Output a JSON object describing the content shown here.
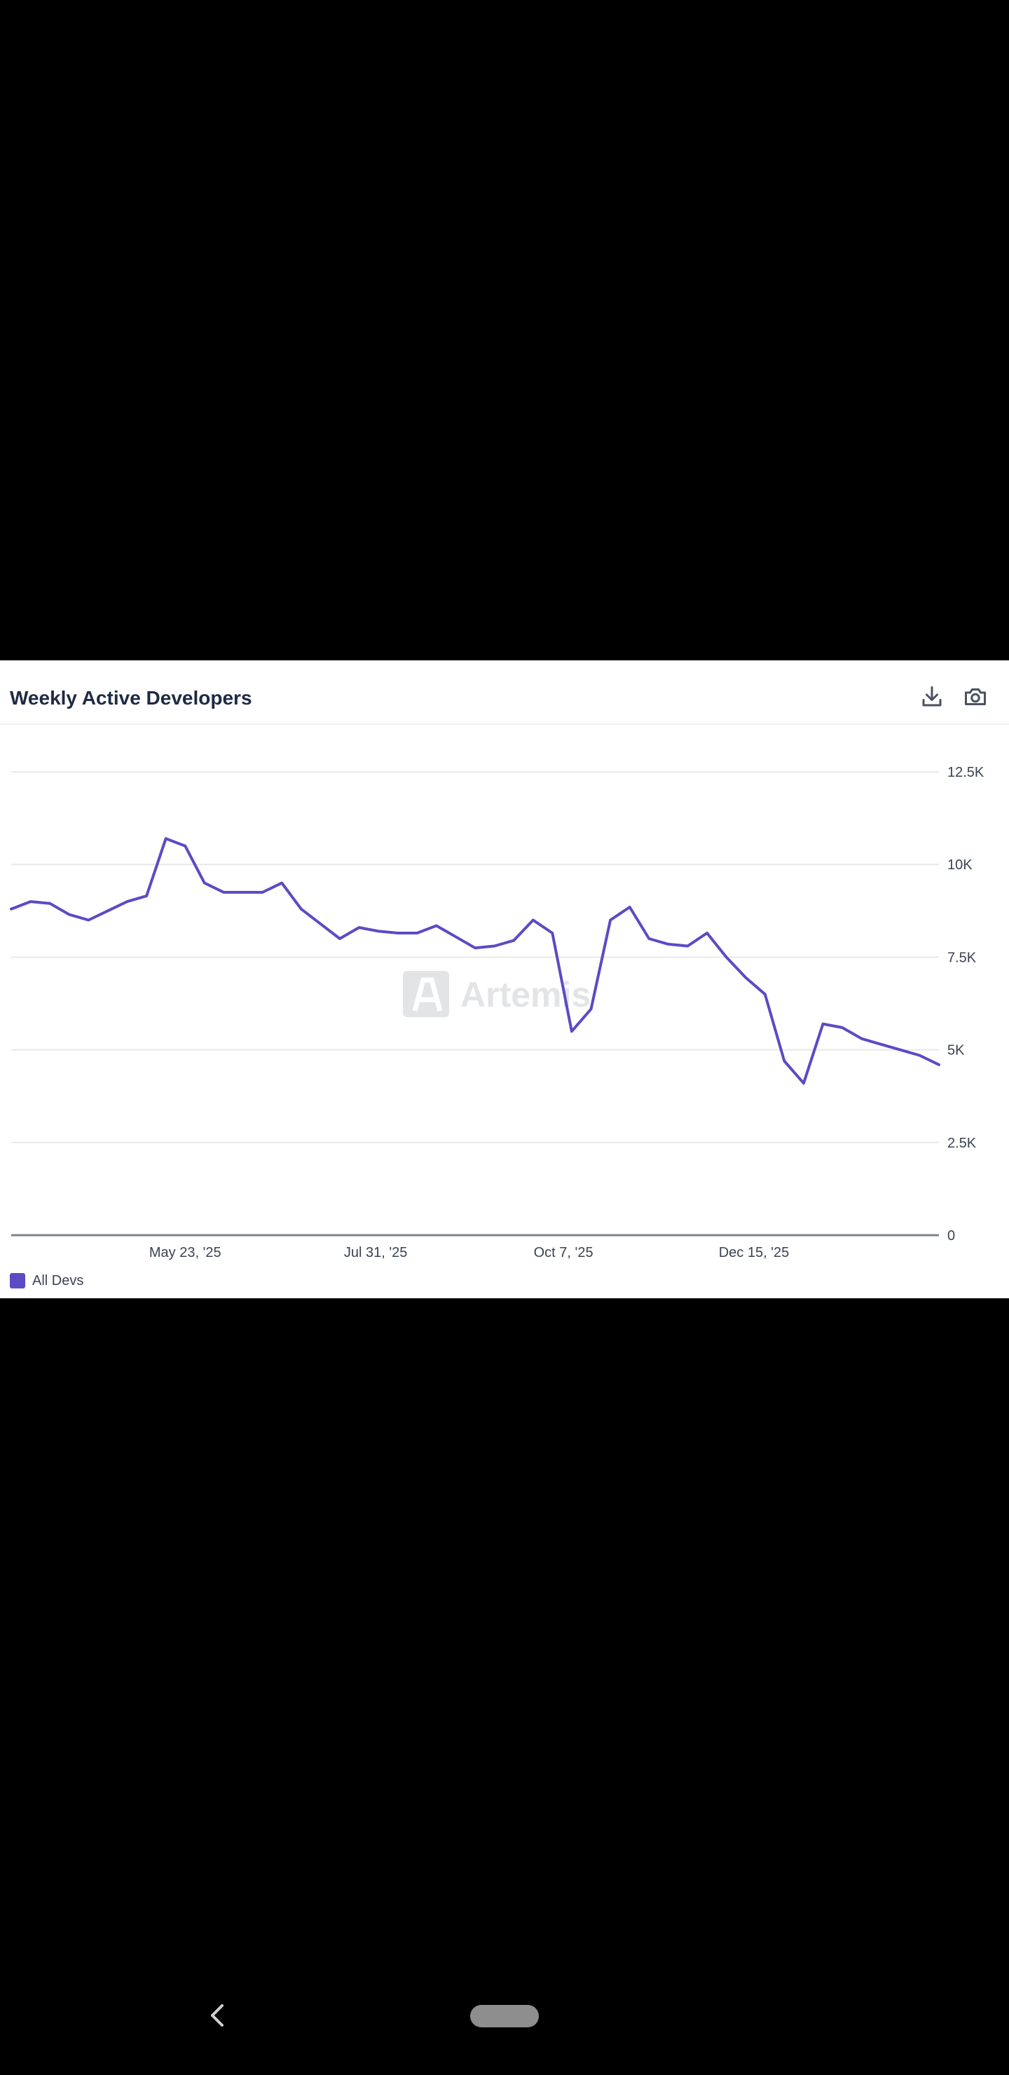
{
  "card": {
    "title": "Weekly Active Developers",
    "download_icon": "download-icon",
    "camera_icon": "camera-icon"
  },
  "watermark": {
    "text": "Artemis",
    "icon": "artemis-logo-icon"
  },
  "colors": {
    "series": "#5b4bc4",
    "grid": "#e6e8ec",
    "axis": "#7d8390",
    "background": "#ffffff",
    "screen": "#000000"
  },
  "navigation": {
    "back_icon": "chevron-left-icon",
    "home_icon": "home-pill-icon"
  },
  "chart_data": {
    "type": "line",
    "title": "Weekly Active Developers",
    "xlabel": "",
    "ylabel": "",
    "x_ticks": [
      "May 23, '25",
      "Jul 31, '25",
      "Oct 7, '25",
      "Dec 15, '25"
    ],
    "y_ticks": [
      "0",
      "2.5K",
      "5K",
      "7.5K",
      "10K",
      "12.5K"
    ],
    "y_tick_values": [
      0,
      2500,
      5000,
      7500,
      10000,
      12500
    ],
    "ylim": [
      0,
      12500
    ],
    "y_axis_position": "right",
    "grid": true,
    "legend_position": "bottom-left",
    "series": [
      {
        "name": "All Devs",
        "color": "#5b4bc4",
        "x": [
          "2025-03-21",
          "2025-03-28",
          "2025-04-04",
          "2025-04-11",
          "2025-04-18",
          "2025-04-25",
          "2025-05-02",
          "2025-05-09",
          "2025-05-16",
          "2025-05-23",
          "2025-05-30",
          "2025-06-06",
          "2025-06-13",
          "2025-06-20",
          "2025-06-27",
          "2025-07-04",
          "2025-07-11",
          "2025-07-18",
          "2025-07-25",
          "2025-08-01",
          "2025-08-08",
          "2025-08-15",
          "2025-08-22",
          "2025-08-29",
          "2025-09-05",
          "2025-09-12",
          "2025-09-19",
          "2025-09-26",
          "2025-10-03",
          "2025-10-10",
          "2025-10-17",
          "2025-10-24",
          "2025-10-31",
          "2025-11-07",
          "2025-11-14",
          "2025-11-21",
          "2025-11-28",
          "2025-12-05",
          "2025-12-12",
          "2025-12-19",
          "2025-12-26",
          "2026-01-02",
          "2026-01-09",
          "2026-01-16",
          "2026-01-23",
          "2026-01-30",
          "2026-02-06",
          "2026-02-13",
          "2026-02-20"
        ],
        "values": [
          8800,
          9000,
          8950,
          8650,
          8500,
          8750,
          9000,
          9150,
          10700,
          10500,
          9500,
          9250,
          9250,
          9250,
          9500,
          8800,
          8400,
          8000,
          8300,
          8200,
          8150,
          8150,
          8350,
          8050,
          7750,
          7800,
          7950,
          8500,
          8150,
          5500,
          6100,
          8500,
          8850,
          8000,
          7850,
          7800,
          8150,
          7500,
          6950,
          6500,
          4700,
          4100,
          5700,
          5600,
          5300,
          5150,
          5000,
          4850,
          4600
        ]
      }
    ]
  }
}
